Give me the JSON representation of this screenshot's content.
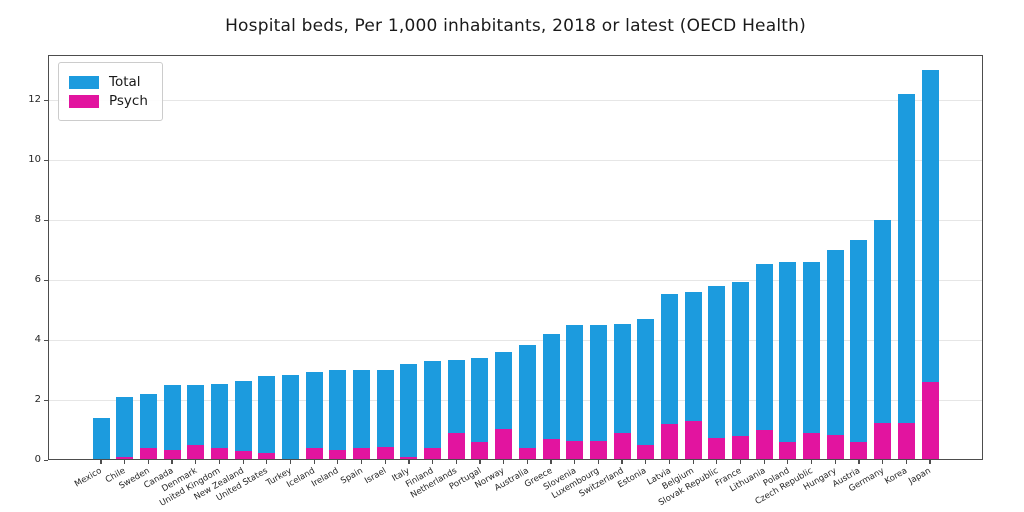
{
  "chart_data": {
    "type": "bar",
    "title": "Hospital beds, Per 1,000 inhabitants, 2018 or latest  (OECD Health)",
    "bar_style": "overlaid",
    "categories": [
      "Mexico",
      "Chile",
      "Sweden",
      "Canada",
      "Denmark",
      "United Kingdom",
      "New Zealand",
      "United States",
      "Turkey",
      "Iceland",
      "Ireland",
      "Spain",
      "Israel",
      "Italy",
      "Finland",
      "Netherlands",
      "Portugal",
      "Norway",
      "Australia",
      "Greece",
      "Slovenia",
      "Luxembourg",
      "Switzerland",
      "Estonia",
      "Latvia",
      "Belgium",
      "Slovak Republic",
      "France",
      "Lithuania",
      "Poland",
      "Czech Republic",
      "Hungary",
      "Austria",
      "Germany",
      "Korea",
      "Japan"
    ],
    "series": [
      {
        "name": "Total",
        "color": "#1c9bde",
        "values": [
          1.4,
          2.1,
          2.2,
          2.5,
          2.5,
          2.55,
          2.65,
          2.8,
          2.85,
          2.95,
          3.0,
          3.0,
          3.0,
          3.2,
          3.3,
          3.35,
          3.4,
          3.6,
          3.85,
          4.2,
          4.5,
          4.5,
          4.55,
          4.7,
          5.55,
          5.6,
          5.8,
          5.95,
          6.55,
          6.6,
          6.6,
          7.0,
          7.35,
          8.0,
          12.2,
          13.0
        ]
      },
      {
        "name": "Psych",
        "color": "#e2149f",
        "values": [
          0.05,
          0.1,
          0.4,
          0.35,
          0.5,
          0.4,
          0.3,
          0.25,
          0.05,
          0.4,
          0.35,
          0.4,
          0.45,
          0.1,
          0.4,
          0.9,
          0.6,
          1.05,
          0.4,
          0.7,
          0.65,
          0.65,
          0.9,
          0.5,
          1.2,
          1.3,
          0.75,
          0.8,
          1.0,
          0.6,
          0.9,
          0.85,
          0.6,
          1.25,
          1.25,
          2.6
        ]
      }
    ],
    "xlabel": "",
    "ylabel": "",
    "ylim": [
      0,
      13.5
    ],
    "yticks": [
      0,
      2,
      4,
      6,
      8,
      10,
      12
    ],
    "grid": true,
    "legend_position": "upper-left",
    "colors": {
      "axis": "#4d4d4d",
      "grid": "#e6e6e6",
      "text": "#262626"
    }
  }
}
